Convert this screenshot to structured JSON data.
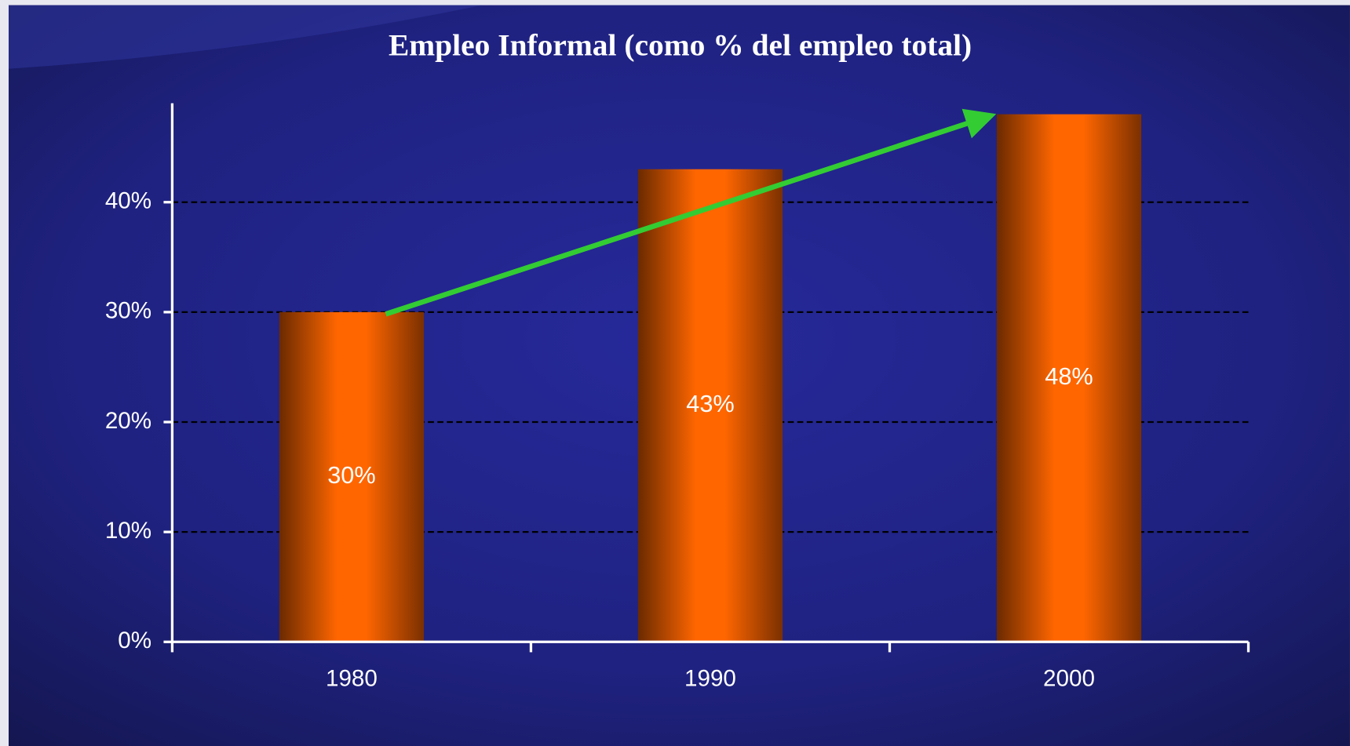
{
  "chart_data": {
    "type": "bar",
    "title": "Empleo Informal (como % del empleo total)",
    "categories": [
      "1980",
      "1990",
      "2000"
    ],
    "values": [
      30,
      43,
      48
    ],
    "value_labels": [
      "30%",
      "43%",
      "48%"
    ],
    "color": "#ff6600",
    "ylim": [
      0,
      49
    ],
    "yticks": [
      {
        "value": 0,
        "label": "0%"
      },
      {
        "value": 10,
        "label": "10%"
      },
      {
        "value": 20,
        "label": "20%"
      },
      {
        "value": 30,
        "label": "30%"
      },
      {
        "value": 40,
        "label": "40%"
      }
    ],
    "grid": true
  }
}
